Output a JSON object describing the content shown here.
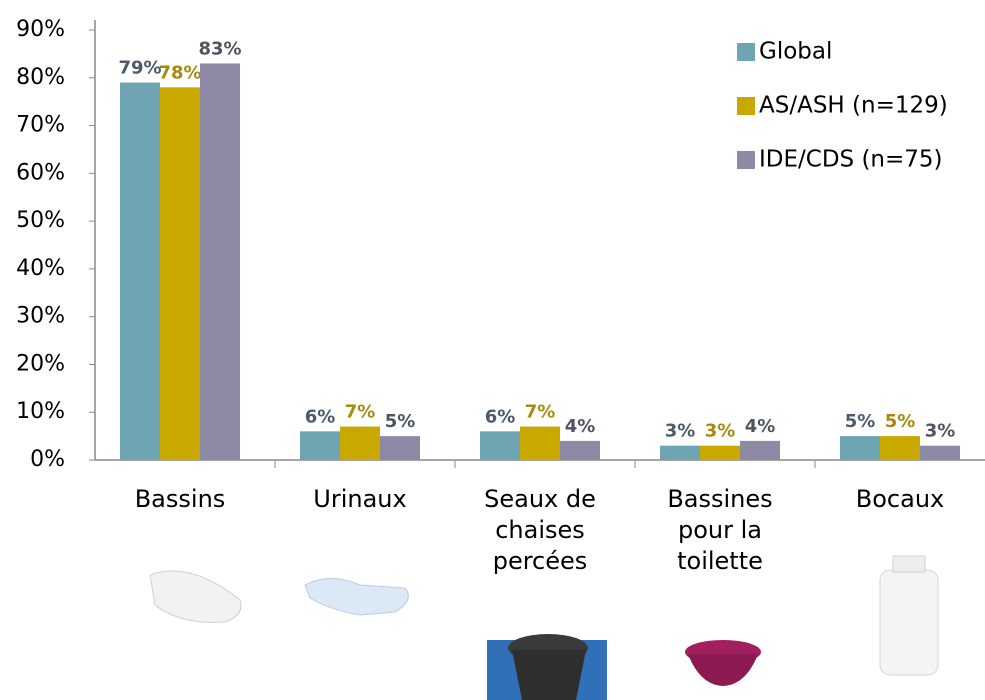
{
  "chart_data": {
    "type": "bar",
    "categories": [
      "Bassins",
      "Urinaux",
      "Seaux de chaises percées",
      "Bassines pour la toilette",
      "Bocaux"
    ],
    "series": [
      {
        "name": "Global",
        "color": "#6fa4b3",
        "label_color": "#4a5b6b",
        "values": [
          79,
          6,
          6,
          3,
          5
        ],
        "value_labels": [
          "79%",
          "6%",
          "6%",
          "3%",
          "5%"
        ]
      },
      {
        "name": "AS/ASH (n=129)",
        "color": "#c9a800",
        "label_color": "#a68a10",
        "values": [
          78,
          7,
          7,
          3,
          5
        ],
        "value_labels": [
          "78%",
          "7%",
          "7%",
          "3%",
          "5%"
        ]
      },
      {
        "name": "IDE/CDS (n=75)",
        "color": "#8e8aa6",
        "label_color": "#4f5560",
        "values": [
          83,
          5,
          4,
          4,
          3
        ],
        "value_labels": [
          "83%",
          "5%",
          "4%",
          "4%",
          "3%"
        ]
      }
    ],
    "ylim": [
      0,
      90
    ],
    "yticks": [
      {
        "value": 0,
        "label": "0%"
      },
      {
        "value": 10,
        "label": "10%"
      },
      {
        "value": 20,
        "label": "20%"
      },
      {
        "value": 30,
        "label": "30%"
      },
      {
        "value": 40,
        "label": "40%"
      },
      {
        "value": 50,
        "label": "50%"
      },
      {
        "value": 60,
        "label": "60%"
      },
      {
        "value": 70,
        "label": "70%"
      },
      {
        "value": 80,
        "label": "80%"
      },
      {
        "value": 90,
        "label": "90%"
      }
    ],
    "grid": false,
    "legend": "top-right"
  }
}
